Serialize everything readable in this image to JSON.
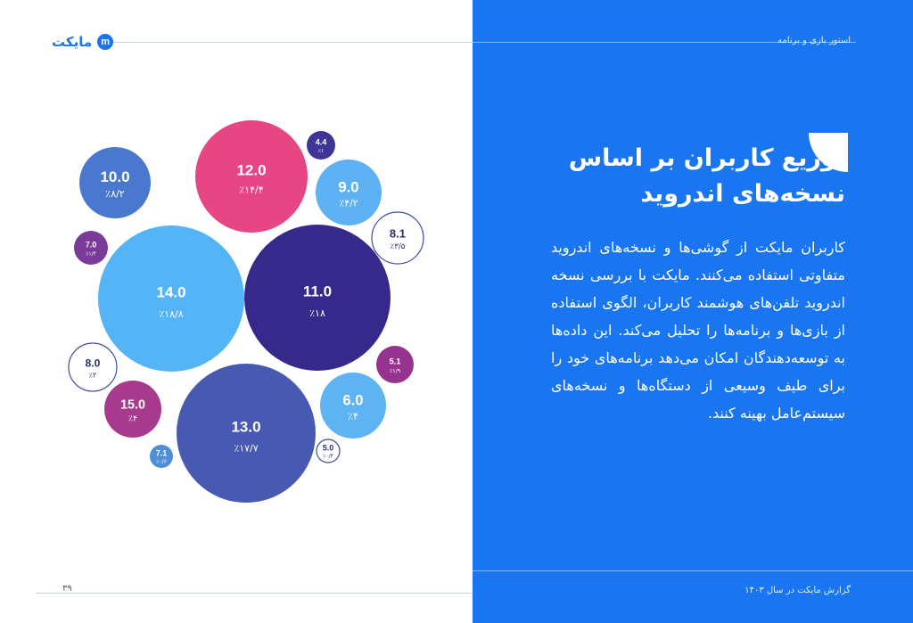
{
  "header": {
    "logo_text": "مایکت",
    "logo_badge": "m",
    "section_label": "استور بازی و برنامه"
  },
  "title": "توزیع کاربران بر اساس نسخه‌های اندروید",
  "body_text": "کاربران مایکت از گوشی‌ها و نسخه‌های اندروید متفاوتی استفاده می‌کنند. مایکت با بررسی نسخه اندروید تلفن‌های هوشمند کاربران، الگوی استفاده از بازی‌ها و برنامه‌ها را تحلیل می‌کند. این داده‌ها به توسعه‌دهندگان امکان می‌دهد برنامه‌های خود را برای طیف وسیعی از دستگاه‌ها و نسخه‌های سیستم‌عامل بهینه کنند.",
  "footer": {
    "report_title": "گزارش مایکت در سال ۱۴۰۳",
    "page_number": "۳۹"
  },
  "colors": {
    "panel": "#1976f0",
    "accent": "#1976f0"
  },
  "chart_data": {
    "type": "bubble",
    "title": "",
    "points": [
      {
        "version": "12.0",
        "share_label": "٪۱۴/۴",
        "share": 14.4,
        "color": "#e64684",
        "style": "filled"
      },
      {
        "version": "4.4",
        "share_label": "٪۱",
        "share": 1.0,
        "color": "#3f3597",
        "style": "filled"
      },
      {
        "version": "10.0",
        "share_label": "٪۸/۲",
        "share": 8.2,
        "color": "#4a78cf",
        "style": "filled"
      },
      {
        "version": "9.0",
        "share_label": "٪۴/۲",
        "share": 4.2,
        "color": "#5eb1f3",
        "style": "filled"
      },
      {
        "version": "8.1",
        "share_label": "٪۳/۵",
        "share": 3.5,
        "color": "#ffffff",
        "style": "outline"
      },
      {
        "version": "7.0",
        "share_label": "٪۱/۴",
        "share": 1.4,
        "color": "#7a3a9a",
        "style": "filled"
      },
      {
        "version": "14.0",
        "share_label": "٪۱۸/۸",
        "share": 18.8,
        "color": "#55b4f6",
        "style": "filled"
      },
      {
        "version": "11.0",
        "share_label": "٪۱۸",
        "share": 18.0,
        "color": "#36298c",
        "style": "filled"
      },
      {
        "version": "8.0",
        "share_label": "٪۲",
        "share": 2.0,
        "color": "#ffffff",
        "style": "outline"
      },
      {
        "version": "5.1",
        "share_label": "٪۱/۹",
        "share": 1.9,
        "color": "#96338f",
        "style": "filled"
      },
      {
        "version": "15.0",
        "share_label": "٪۴",
        "share": 4.0,
        "color": "#a83a8e",
        "style": "filled"
      },
      {
        "version": "13.0",
        "share_label": "٪۱۷/۷",
        "share": 17.7,
        "color": "#4859b1",
        "style": "filled"
      },
      {
        "version": "6.0",
        "share_label": "٪۴",
        "share": 4.0,
        "color": "#5eb3f3",
        "style": "filled"
      },
      {
        "version": "5.0",
        "share_label": "٪۰/۴",
        "share": 0.4,
        "color": "#ffffff",
        "style": "outline"
      },
      {
        "version": "7.1",
        "share_label": "٪۰/۶",
        "share": 0.6,
        "color": "#4f8fd8",
        "style": "filled"
      }
    ]
  }
}
